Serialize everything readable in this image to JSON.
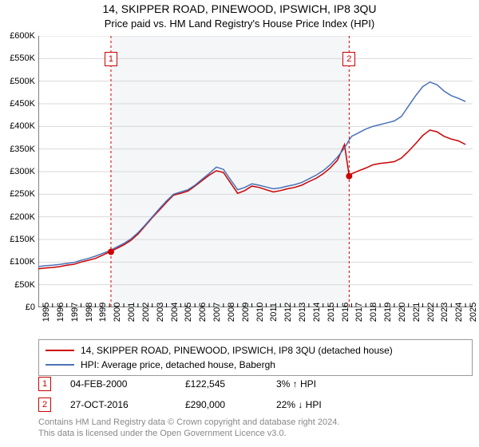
{
  "title": "14, SKIPPER ROAD, PINEWOOD, IPSWICH, IP8 3QU",
  "subtitle": "Price paid vs. HM Land Registry's House Price Index (HPI)",
  "chart": {
    "type": "line",
    "background_color": "#ffffff",
    "plot_shade_color": "#f4f6f8",
    "ylabel_prefix": "£",
    "ylim": [
      0,
      600000
    ],
    "ytick_step": 50000,
    "yticks": [
      "£0",
      "£50K",
      "£100K",
      "£150K",
      "£200K",
      "£250K",
      "£300K",
      "£350K",
      "£400K",
      "£450K",
      "£500K",
      "£550K",
      "£600K"
    ],
    "xrange": [
      1995,
      2025.5
    ],
    "xticks": [
      1995,
      1996,
      1997,
      1998,
      1999,
      2000,
      2001,
      2002,
      2003,
      2004,
      2005,
      2006,
      2007,
      2008,
      2009,
      2010,
      2011,
      2012,
      2013,
      2014,
      2015,
      2016,
      2017,
      2018,
      2019,
      2020,
      2021,
      2022,
      2023,
      2024,
      2025
    ],
    "grid_color": "#d9d9d9",
    "axis_color": "#000000",
    "tick_fontsize": 11,
    "title_fontsize": 14,
    "subtitle_fontsize": 13,
    "series": [
      {
        "name": "property",
        "label": "14, SKIPPER ROAD, PINEWOOD, IPSWICH, IP8 3QU (detached house)",
        "color": "#cc0000",
        "line_width": 1.5,
        "points": [
          [
            1995.0,
            85000
          ],
          [
            1995.5,
            87000
          ],
          [
            1996.0,
            88000
          ],
          [
            1996.5,
            90000
          ],
          [
            1997.0,
            93000
          ],
          [
            1997.5,
            95000
          ],
          [
            1998.0,
            100000
          ],
          [
            1998.5,
            104000
          ],
          [
            1999.0,
            108000
          ],
          [
            1999.5,
            115000
          ],
          [
            2000.0,
            122545
          ],
          [
            2000.5,
            130000
          ],
          [
            2001.0,
            138000
          ],
          [
            2001.5,
            148000
          ],
          [
            2002.0,
            162000
          ],
          [
            2002.5,
            180000
          ],
          [
            2003.0,
            198000
          ],
          [
            2003.5,
            215000
          ],
          [
            2004.0,
            232000
          ],
          [
            2004.5,
            248000
          ],
          [
            2005.0,
            252000
          ],
          [
            2005.5,
            257000
          ],
          [
            2006.0,
            268000
          ],
          [
            2006.5,
            280000
          ],
          [
            2007.0,
            292000
          ],
          [
            2007.5,
            302000
          ],
          [
            2008.0,
            298000
          ],
          [
            2008.5,
            275000
          ],
          [
            2009.0,
            252000
          ],
          [
            2009.5,
            258000
          ],
          [
            2010.0,
            268000
          ],
          [
            2010.5,
            265000
          ],
          [
            2011.0,
            260000
          ],
          [
            2011.5,
            255000
          ],
          [
            2012.0,
            258000
          ],
          [
            2012.5,
            262000
          ],
          [
            2013.0,
            265000
          ],
          [
            2013.5,
            270000
          ],
          [
            2014.0,
            278000
          ],
          [
            2014.5,
            285000
          ],
          [
            2015.0,
            295000
          ],
          [
            2015.5,
            308000
          ],
          [
            2016.0,
            325000
          ],
          [
            2016.5,
            360000
          ],
          [
            2016.83,
            290000
          ],
          [
            2017.0,
            295000
          ],
          [
            2017.5,
            302000
          ],
          [
            2018.0,
            308000
          ],
          [
            2018.5,
            315000
          ],
          [
            2019.0,
            318000
          ],
          [
            2019.5,
            320000
          ],
          [
            2020.0,
            322000
          ],
          [
            2020.5,
            330000
          ],
          [
            2021.0,
            345000
          ],
          [
            2021.5,
            362000
          ],
          [
            2022.0,
            380000
          ],
          [
            2022.5,
            392000
          ],
          [
            2023.0,
            388000
          ],
          [
            2023.5,
            378000
          ],
          [
            2024.0,
            372000
          ],
          [
            2024.5,
            368000
          ],
          [
            2025.0,
            360000
          ]
        ]
      },
      {
        "name": "hpi",
        "label": "HPI: Average price, detached house, Babergh",
        "color": "#4a72b8",
        "line_width": 1.5,
        "points": [
          [
            1995.0,
            90000
          ],
          [
            1995.5,
            92000
          ],
          [
            1996.0,
            93000
          ],
          [
            1996.5,
            95000
          ],
          [
            1997.0,
            97000
          ],
          [
            1997.5,
            99000
          ],
          [
            1998.0,
            104000
          ],
          [
            1998.5,
            108000
          ],
          [
            1999.0,
            113000
          ],
          [
            1999.5,
            119000
          ],
          [
            2000.0,
            125000
          ],
          [
            2000.5,
            133000
          ],
          [
            2001.0,
            141000
          ],
          [
            2001.5,
            151000
          ],
          [
            2002.0,
            165000
          ],
          [
            2002.5,
            182000
          ],
          [
            2003.0,
            200000
          ],
          [
            2003.5,
            218000
          ],
          [
            2004.0,
            235000
          ],
          [
            2004.5,
            250000
          ],
          [
            2005.0,
            255000
          ],
          [
            2005.5,
            260000
          ],
          [
            2006.0,
            270000
          ],
          [
            2006.5,
            283000
          ],
          [
            2007.0,
            296000
          ],
          [
            2007.5,
            310000
          ],
          [
            2008.0,
            305000
          ],
          [
            2008.5,
            282000
          ],
          [
            2009.0,
            260000
          ],
          [
            2009.5,
            265000
          ],
          [
            2010.0,
            273000
          ],
          [
            2010.5,
            270000
          ],
          [
            2011.0,
            266000
          ],
          [
            2011.5,
            262000
          ],
          [
            2012.0,
            264000
          ],
          [
            2012.5,
            268000
          ],
          [
            2013.0,
            271000
          ],
          [
            2013.5,
            276000
          ],
          [
            2014.0,
            284000
          ],
          [
            2014.5,
            292000
          ],
          [
            2015.0,
            302000
          ],
          [
            2015.5,
            315000
          ],
          [
            2016.0,
            332000
          ],
          [
            2016.5,
            352000
          ],
          [
            2016.83,
            370000
          ],
          [
            2017.0,
            378000
          ],
          [
            2017.5,
            386000
          ],
          [
            2018.0,
            394000
          ],
          [
            2018.5,
            400000
          ],
          [
            2019.0,
            404000
          ],
          [
            2019.5,
            408000
          ],
          [
            2020.0,
            412000
          ],
          [
            2020.5,
            422000
          ],
          [
            2021.0,
            445000
          ],
          [
            2021.5,
            468000
          ],
          [
            2022.0,
            488000
          ],
          [
            2022.5,
            498000
          ],
          [
            2023.0,
            492000
          ],
          [
            2023.5,
            478000
          ],
          [
            2024.0,
            468000
          ],
          [
            2024.5,
            462000
          ],
          [
            2025.0,
            455000
          ]
        ]
      }
    ],
    "markers": [
      {
        "n": "1",
        "x": 2000.1,
        "y": 122545,
        "dot_color": "#cc0000"
      },
      {
        "n": "2",
        "x": 2016.83,
        "y": 290000,
        "dot_color": "#cc0000"
      }
    ],
    "shaded_range": [
      2000.1,
      2016.83
    ]
  },
  "legend": {
    "series1": "14, SKIPPER ROAD, PINEWOOD, IPSWICH, IP8 3QU (detached house)",
    "series2": "HPI: Average price, detached house, Babergh",
    "color1": "#cc0000",
    "color2": "#4a72b8"
  },
  "transactions": [
    {
      "n": "1",
      "date": "04-FEB-2000",
      "price": "£122,545",
      "pct": "3% ↑ HPI"
    },
    {
      "n": "2",
      "date": "27-OCT-2016",
      "price": "£290,000",
      "pct": "22% ↓ HPI"
    }
  ],
  "footnote_line1": "Contains HM Land Registry data © Crown copyright and database right 2024.",
  "footnote_line2": "This data is licensed under the Open Government Licence v3.0."
}
